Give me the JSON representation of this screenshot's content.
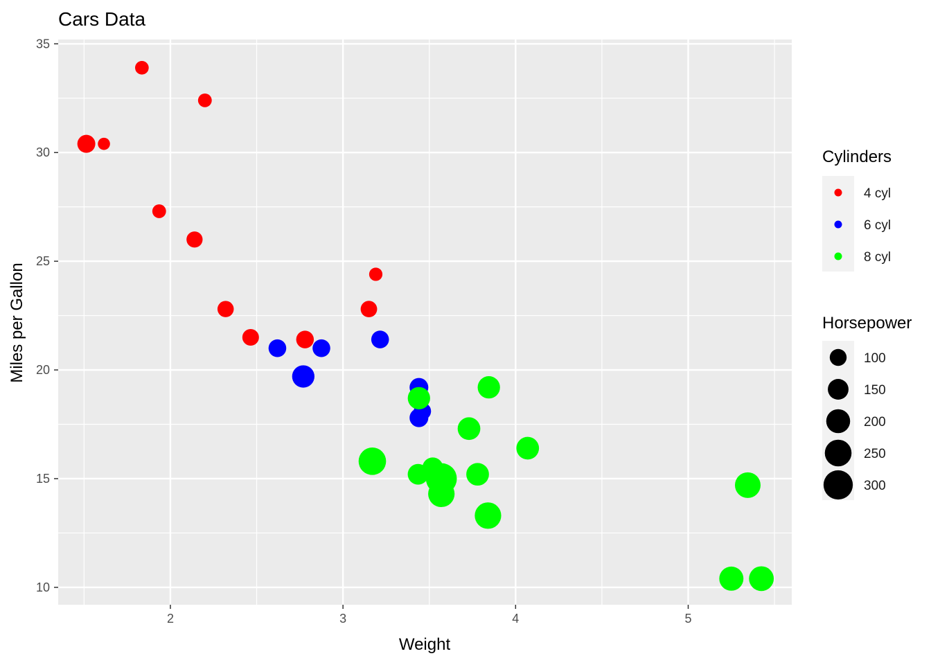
{
  "chart_data": {
    "type": "scatter",
    "title": "Cars Data",
    "xlabel": "Weight",
    "ylabel": "Miles per Gallon",
    "xlim": [
      1.35,
      5.6
    ],
    "ylim": [
      9.2,
      35.2
    ],
    "x_ticks": [
      2,
      3,
      4,
      5
    ],
    "y_ticks": [
      10,
      15,
      20,
      25,
      30,
      35
    ],
    "grid": true,
    "panel_background": "#ebebeb",
    "grid_color": "#ffffff",
    "legend_placement": "right",
    "color_legend": {
      "title": "Cylinders",
      "entries": [
        {
          "label": "4 cyl",
          "color": "#ff0000"
        },
        {
          "label": "6 cyl",
          "color": "#0000ff"
        },
        {
          "label": "8 cyl",
          "color": "#00ff00"
        }
      ]
    },
    "size_legend": {
      "title": "Horsepower",
      "entries": [
        {
          "label": "100",
          "value": 100
        },
        {
          "label": "150",
          "value": 150
        },
        {
          "label": "200",
          "value": 200
        },
        {
          "label": "250",
          "value": 250
        },
        {
          "label": "300",
          "value": 300
        }
      ]
    },
    "series": [
      {
        "name": "4 cyl",
        "color": "#ff0000",
        "points": [
          {
            "x": 1.835,
            "y": 33.9,
            "hp": 65
          },
          {
            "x": 2.2,
            "y": 32.4,
            "hp": 66
          },
          {
            "x": 1.513,
            "y": 30.4,
            "hp": 113
          },
          {
            "x": 1.615,
            "y": 30.4,
            "hp": 52
          },
          {
            "x": 1.935,
            "y": 27.3,
            "hp": 66
          },
          {
            "x": 2.14,
            "y": 26.0,
            "hp": 91
          },
          {
            "x": 3.19,
            "y": 24.4,
            "hp": 62
          },
          {
            "x": 2.32,
            "y": 22.8,
            "hp": 93
          },
          {
            "x": 3.15,
            "y": 22.8,
            "hp": 95
          },
          {
            "x": 2.465,
            "y": 21.5,
            "hp": 97
          },
          {
            "x": 2.78,
            "y": 21.4,
            "hp": 109
          }
        ]
      },
      {
        "name": "6 cyl",
        "color": "#0000ff",
        "points": [
          {
            "x": 2.62,
            "y": 21.0,
            "hp": 110
          },
          {
            "x": 2.875,
            "y": 21.0,
            "hp": 110
          },
          {
            "x": 3.215,
            "y": 21.4,
            "hp": 110
          },
          {
            "x": 3.44,
            "y": 19.2,
            "hp": 123
          },
          {
            "x": 3.46,
            "y": 18.1,
            "hp": 105
          },
          {
            "x": 3.44,
            "y": 17.8,
            "hp": 123
          },
          {
            "x": 2.77,
            "y": 19.7,
            "hp": 175
          }
        ]
      },
      {
        "name": "8 cyl",
        "color": "#00ff00",
        "points": [
          {
            "x": 3.44,
            "y": 18.7,
            "hp": 175
          },
          {
            "x": 3.845,
            "y": 19.2,
            "hp": 175
          },
          {
            "x": 3.73,
            "y": 17.3,
            "hp": 180
          },
          {
            "x": 4.07,
            "y": 16.4,
            "hp": 180
          },
          {
            "x": 3.78,
            "y": 15.2,
            "hp": 180
          },
          {
            "x": 3.435,
            "y": 15.2,
            "hp": 150
          },
          {
            "x": 3.52,
            "y": 15.5,
            "hp": 150
          },
          {
            "x": 3.17,
            "y": 15.8,
            "hp": 264
          },
          {
            "x": 3.57,
            "y": 15.0,
            "hp": 335
          },
          {
            "x": 3.57,
            "y": 14.3,
            "hp": 245
          },
          {
            "x": 3.84,
            "y": 13.3,
            "hp": 245
          },
          {
            "x": 5.345,
            "y": 14.7,
            "hp": 230
          },
          {
            "x": 5.25,
            "y": 10.4,
            "hp": 205
          },
          {
            "x": 5.424,
            "y": 10.4,
            "hp": 215
          }
        ]
      }
    ]
  }
}
